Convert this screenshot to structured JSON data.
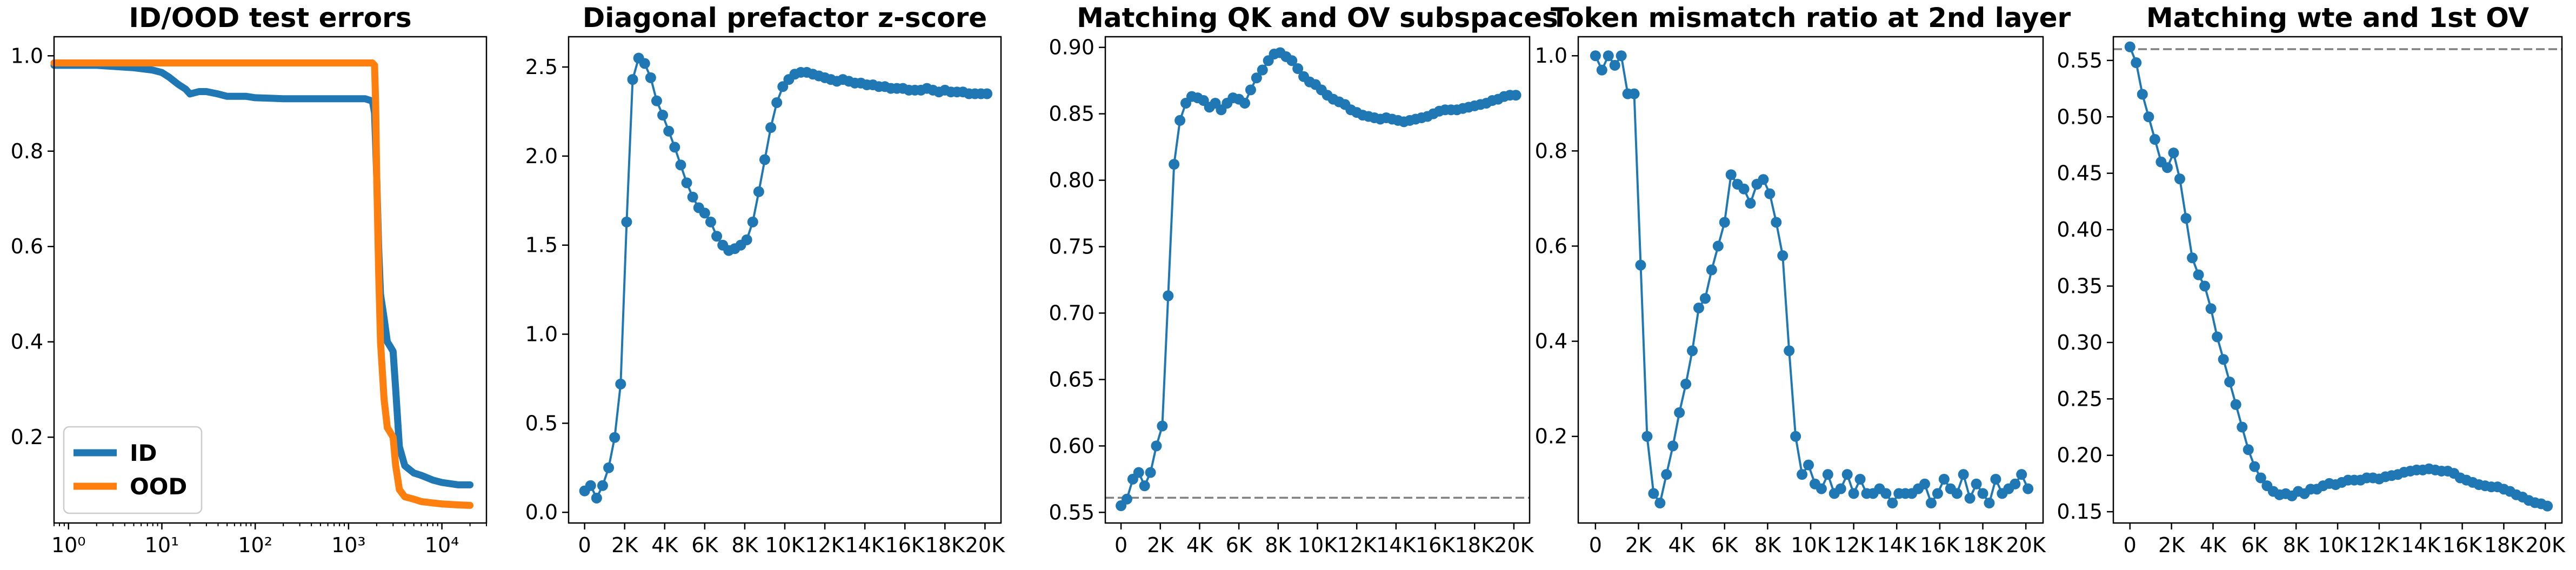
{
  "chart_data": [
    {
      "type": "line",
      "title": "ID/OOD test errors",
      "xlabel": "",
      "ylabel": "",
      "xscale": "log",
      "xlim": [
        0.7,
        30000
      ],
      "ylim": [
        0.02,
        1.04
      ],
      "xticks": [
        1,
        10,
        100,
        1000,
        10000
      ],
      "xtick_labels": [
        "10⁰",
        "10¹",
        "10²",
        "10³",
        "10⁴"
      ],
      "yticks": [
        0.2,
        0.4,
        0.6,
        0.8,
        1.0
      ],
      "ytick_labels": [
        "0.2",
        "0.4",
        "0.6",
        "0.8",
        "1.0"
      ],
      "legend_position": "lower-left",
      "series": [
        {
          "name": "ID",
          "color": "#1f77b4",
          "x": [
            0.7,
            1,
            2,
            5,
            8,
            10,
            12,
            15,
            18,
            20,
            25,
            30,
            40,
            50,
            80,
            100,
            200,
            500,
            1000,
            1500,
            1800,
            1900,
            2000,
            2100,
            2200,
            2400,
            2600,
            2800,
            3000,
            3200,
            3500,
            4000,
            5000,
            6000,
            8000,
            10000,
            15000,
            20000
          ],
          "y": [
            0.98,
            0.98,
            0.98,
            0.975,
            0.97,
            0.965,
            0.955,
            0.94,
            0.93,
            0.92,
            0.925,
            0.925,
            0.92,
            0.915,
            0.915,
            0.912,
            0.91,
            0.91,
            0.91,
            0.91,
            0.905,
            0.88,
            0.75,
            0.6,
            0.5,
            0.45,
            0.4,
            0.39,
            0.38,
            0.3,
            0.18,
            0.14,
            0.125,
            0.12,
            0.11,
            0.105,
            0.1,
            0.1
          ]
        },
        {
          "name": "OOD",
          "color": "#ff7f0e",
          "x": [
            0.7,
            1,
            10,
            100,
            1000,
            1500,
            1800,
            1900,
            1950,
            2000,
            2050,
            2100,
            2200,
            2400,
            2600,
            2800,
            3000,
            3200,
            3500,
            4000,
            5000,
            6000,
            8000,
            10000,
            15000,
            20000
          ],
          "y": [
            0.985,
            0.985,
            0.985,
            0.985,
            0.985,
            0.985,
            0.985,
            0.98,
            0.9,
            0.75,
            0.65,
            0.55,
            0.4,
            0.28,
            0.22,
            0.21,
            0.2,
            0.14,
            0.09,
            0.075,
            0.07,
            0.065,
            0.062,
            0.06,
            0.058,
            0.057
          ]
        }
      ]
    },
    {
      "type": "line",
      "title": "Diagonal prefactor z-score",
      "xlabel": "",
      "ylabel": "",
      "xlim": [
        -800,
        20800
      ],
      "ylim": [
        -0.06,
        2.67
      ],
      "xticks": [
        0,
        2000,
        4000,
        6000,
        8000,
        10000,
        12000,
        14000,
        16000,
        18000,
        20000
      ],
      "xtick_labels": [
        "0",
        "2K",
        "4K",
        "6K",
        "8K",
        "10K",
        "12K",
        "14K",
        "16K",
        "18K",
        "20K"
      ],
      "yticks": [
        0.0,
        0.5,
        1.0,
        1.5,
        2.0,
        2.5
      ],
      "ytick_labels": [
        "0.0",
        "0.5",
        "1.0",
        "1.5",
        "2.0",
        "2.5"
      ],
      "markers": true,
      "series": [
        {
          "color": "#1f77b4",
          "x": [
            0,
            300,
            600,
            900,
            1200,
            1500,
            1800,
            2100,
            2400,
            2700,
            3000,
            3300,
            3600,
            3900,
            4200,
            4500,
            4800,
            5100,
            5400,
            5700,
            6000,
            6300,
            6600,
            6900,
            7200,
            7500,
            7800,
            8100,
            8400,
            8700,
            9000,
            9300,
            9600,
            9900,
            10200,
            10500,
            10800,
            11100,
            11400,
            11700,
            12000,
            12300,
            12600,
            12900,
            13200,
            13500,
            13800,
            14100,
            14400,
            14700,
            15000,
            15300,
            15600,
            15900,
            16200,
            16500,
            16800,
            17100,
            17400,
            17700,
            18000,
            18300,
            18600,
            18900,
            19200,
            19500,
            19800,
            20100
          ],
          "y": [
            0.12,
            0.15,
            0.08,
            0.15,
            0.25,
            0.42,
            0.72,
            1.63,
            2.43,
            2.55,
            2.52,
            2.44,
            2.31,
            2.23,
            2.14,
            2.05,
            1.95,
            1.85,
            1.77,
            1.71,
            1.68,
            1.63,
            1.55,
            1.5,
            1.47,
            1.48,
            1.5,
            1.53,
            1.63,
            1.8,
            1.98,
            2.16,
            2.3,
            2.39,
            2.43,
            2.46,
            2.47,
            2.47,
            2.46,
            2.45,
            2.44,
            2.43,
            2.42,
            2.43,
            2.42,
            2.41,
            2.41,
            2.4,
            2.4,
            2.39,
            2.39,
            2.38,
            2.38,
            2.38,
            2.37,
            2.37,
            2.37,
            2.38,
            2.37,
            2.36,
            2.37,
            2.36,
            2.36,
            2.36,
            2.35,
            2.35,
            2.35,
            2.35
          ]
        }
      ]
    },
    {
      "type": "line",
      "title": "Matching QK and OV subspaces",
      "xlabel": "",
      "ylabel": "",
      "xlim": [
        -800,
        20800
      ],
      "ylim": [
        0.542,
        0.908
      ],
      "xticks": [
        0,
        2000,
        4000,
        6000,
        8000,
        10000,
        12000,
        14000,
        16000,
        18000,
        20000
      ],
      "xtick_labels": [
        "0",
        "2K",
        "4K",
        "6K",
        "8K",
        "10K",
        "12K",
        "14K",
        "16K",
        "18K",
        "20K"
      ],
      "yticks": [
        0.55,
        0.6,
        0.65,
        0.7,
        0.75,
        0.8,
        0.85,
        0.9
      ],
      "ytick_labels": [
        "0.55",
        "0.60",
        "0.65",
        "0.70",
        "0.75",
        "0.80",
        "0.85",
        "0.90"
      ],
      "reference_line": 0.561,
      "reference_color": "#808080",
      "markers": true,
      "series": [
        {
          "color": "#1f77b4",
          "x": [
            0,
            300,
            600,
            900,
            1200,
            1500,
            1800,
            2100,
            2400,
            2700,
            3000,
            3300,
            3600,
            3900,
            4200,
            4500,
            4800,
            5100,
            5400,
            5700,
            6000,
            6300,
            6600,
            6900,
            7200,
            7500,
            7800,
            8100,
            8400,
            8700,
            9000,
            9300,
            9600,
            9900,
            10200,
            10500,
            10800,
            11100,
            11400,
            11700,
            12000,
            12300,
            12600,
            12900,
            13200,
            13500,
            13800,
            14100,
            14400,
            14700,
            15000,
            15300,
            15600,
            15900,
            16200,
            16500,
            16800,
            17100,
            17400,
            17700,
            18000,
            18300,
            18600,
            18900,
            19200,
            19500,
            19800,
            20100
          ],
          "y": [
            0.555,
            0.56,
            0.575,
            0.58,
            0.57,
            0.58,
            0.6,
            0.615,
            0.713,
            0.812,
            0.845,
            0.858,
            0.863,
            0.862,
            0.86,
            0.855,
            0.858,
            0.853,
            0.858,
            0.862,
            0.861,
            0.858,
            0.868,
            0.877,
            0.883,
            0.89,
            0.895,
            0.896,
            0.893,
            0.89,
            0.884,
            0.878,
            0.874,
            0.872,
            0.868,
            0.864,
            0.861,
            0.859,
            0.857,
            0.853,
            0.851,
            0.849,
            0.848,
            0.847,
            0.846,
            0.847,
            0.846,
            0.845,
            0.844,
            0.845,
            0.846,
            0.847,
            0.848,
            0.85,
            0.852,
            0.853,
            0.853,
            0.853,
            0.854,
            0.855,
            0.856,
            0.857,
            0.858,
            0.86,
            0.861,
            0.863,
            0.864,
            0.864
          ]
        }
      ]
    },
    {
      "type": "line",
      "title": "Token mismatch ratio at 2nd layer",
      "xlabel": "",
      "ylabel": "",
      "xlim": [
        -800,
        20800
      ],
      "ylim": [
        0.018,
        1.04
      ],
      "xticks": [
        0,
        2000,
        4000,
        6000,
        8000,
        10000,
        12000,
        14000,
        16000,
        18000,
        20000
      ],
      "xtick_labels": [
        "0",
        "2K",
        "4K",
        "6K",
        "8K",
        "10K",
        "12K",
        "14K",
        "16K",
        "18K",
        "20K"
      ],
      "yticks": [
        0.2,
        0.4,
        0.6,
        0.8,
        1.0
      ],
      "ytick_labels": [
        "0.2",
        "0.4",
        "0.6",
        "0.8",
        "1.0"
      ],
      "markers": true,
      "series": [
        {
          "color": "#1f77b4",
          "x": [
            0,
            300,
            600,
            900,
            1200,
            1500,
            1800,
            2100,
            2400,
            2700,
            3000,
            3300,
            3600,
            3900,
            4200,
            4500,
            4800,
            5100,
            5400,
            5700,
            6000,
            6300,
            6600,
            6900,
            7200,
            7500,
            7800,
            8100,
            8400,
            8700,
            9000,
            9300,
            9600,
            9900,
            10200,
            10500,
            10800,
            11100,
            11400,
            11700,
            12000,
            12300,
            12600,
            12900,
            13200,
            13500,
            13800,
            14100,
            14400,
            14700,
            15000,
            15300,
            15600,
            15900,
            16200,
            16500,
            16800,
            17100,
            17400,
            17700,
            18000,
            18300,
            18600,
            18900,
            19200,
            19500,
            19800,
            20100
          ],
          "y": [
            1.0,
            0.97,
            1.0,
            0.98,
            1.0,
            0.92,
            0.92,
            0.56,
            0.2,
            0.08,
            0.06,
            0.12,
            0.18,
            0.25,
            0.31,
            0.38,
            0.47,
            0.49,
            0.55,
            0.6,
            0.65,
            0.75,
            0.73,
            0.72,
            0.69,
            0.73,
            0.74,
            0.71,
            0.65,
            0.58,
            0.38,
            0.2,
            0.12,
            0.14,
            0.1,
            0.09,
            0.12,
            0.08,
            0.09,
            0.12,
            0.08,
            0.11,
            0.08,
            0.08,
            0.09,
            0.08,
            0.06,
            0.08,
            0.08,
            0.08,
            0.09,
            0.1,
            0.06,
            0.08,
            0.11,
            0.09,
            0.08,
            0.12,
            0.07,
            0.1,
            0.08,
            0.06,
            0.11,
            0.08,
            0.09,
            0.1,
            0.12,
            0.09
          ]
        }
      ]
    },
    {
      "type": "line",
      "title": "Matching wte and 1st OV",
      "xlabel": "",
      "ylabel": "",
      "xlim": [
        -800,
        20800
      ],
      "ylim": [
        0.14,
        0.571
      ],
      "xticks": [
        0,
        2000,
        4000,
        6000,
        8000,
        10000,
        12000,
        14000,
        16000,
        18000,
        20000
      ],
      "xtick_labels": [
        "0",
        "2K",
        "4K",
        "6K",
        "8K",
        "10K",
        "12K",
        "14K",
        "16K",
        "18K",
        "20K"
      ],
      "yticks": [
        0.15,
        0.2,
        0.25,
        0.3,
        0.35,
        0.4,
        0.45,
        0.5,
        0.55
      ],
      "ytick_labels": [
        "0.15",
        "0.20",
        "0.25",
        "0.30",
        "0.35",
        "0.40",
        "0.45",
        "0.50",
        "0.55"
      ],
      "reference_line": 0.56,
      "reference_color": "#808080",
      "markers": true,
      "series": [
        {
          "color": "#1f77b4",
          "x": [
            0,
            300,
            600,
            900,
            1200,
            1500,
            1800,
            2100,
            2400,
            2700,
            3000,
            3300,
            3600,
            3900,
            4200,
            4500,
            4800,
            5100,
            5400,
            5700,
            6000,
            6300,
            6600,
            6900,
            7200,
            7500,
            7800,
            8100,
            8400,
            8700,
            9000,
            9300,
            9600,
            9900,
            10200,
            10500,
            10800,
            11100,
            11400,
            11700,
            12000,
            12300,
            12600,
            12900,
            13200,
            13500,
            13800,
            14100,
            14400,
            14700,
            15000,
            15300,
            15600,
            15900,
            16200,
            16500,
            16800,
            17100,
            17400,
            17700,
            18000,
            18300,
            18600,
            18900,
            19200,
            19500,
            19800,
            20100
          ],
          "y": [
            0.562,
            0.548,
            0.52,
            0.5,
            0.48,
            0.46,
            0.455,
            0.468,
            0.445,
            0.41,
            0.375,
            0.36,
            0.35,
            0.33,
            0.305,
            0.285,
            0.265,
            0.245,
            0.225,
            0.205,
            0.19,
            0.18,
            0.173,
            0.168,
            0.165,
            0.166,
            0.164,
            0.168,
            0.166,
            0.17,
            0.17,
            0.173,
            0.175,
            0.174,
            0.176,
            0.178,
            0.178,
            0.178,
            0.18,
            0.18,
            0.179,
            0.181,
            0.182,
            0.183,
            0.185,
            0.186,
            0.187,
            0.187,
            0.188,
            0.187,
            0.186,
            0.186,
            0.184,
            0.18,
            0.178,
            0.176,
            0.174,
            0.173,
            0.172,
            0.172,
            0.17,
            0.168,
            0.165,
            0.163,
            0.16,
            0.158,
            0.157,
            0.155
          ]
        }
      ]
    }
  ]
}
